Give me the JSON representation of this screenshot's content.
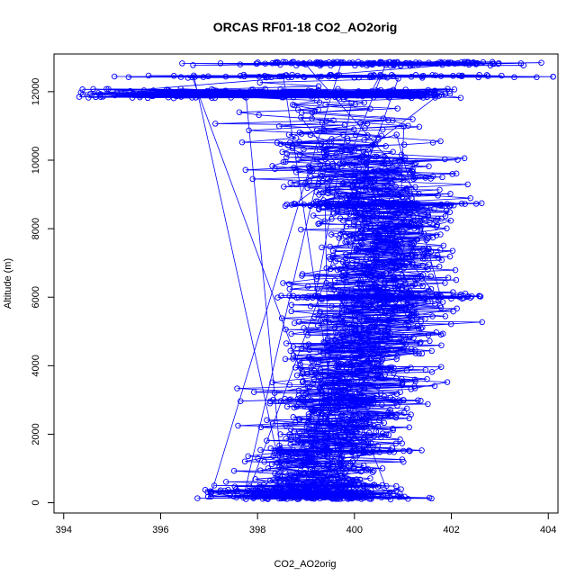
{
  "chart_data": {
    "type": "scatter",
    "title": "ORCAS RF01-18 CO2_AO2orig",
    "xlabel": "CO2_AO2orig",
    "ylabel": "Altitude (m)",
    "xlim": [
      393.8,
      404.2
    ],
    "ylim": [
      -300,
      13100
    ],
    "xticks": [
      "394",
      "396",
      "398",
      "400",
      "402",
      "404"
    ],
    "yticks": [
      "0",
      "2000",
      "4000",
      "6000",
      "8000",
      "10000",
      "12000"
    ],
    "grid": false,
    "legend": "none",
    "marker": "open-circle",
    "connected": true,
    "color": "#0000ff",
    "profile": [
      {
        "alt": 200,
        "center": 399.3,
        "spread": 1.0
      },
      {
        "alt": 1000,
        "center": 399.3,
        "spread": 1.0
      },
      {
        "alt": 1500,
        "center": 399.4,
        "spread": 0.9
      },
      {
        "alt": 2000,
        "center": 399.6,
        "spread": 1.0
      },
      {
        "alt": 3000,
        "center": 399.9,
        "spread": 1.0
      },
      {
        "alt": 4000,
        "center": 400.1,
        "spread": 1.0
      },
      {
        "alt": 5000,
        "center": 400.3,
        "spread": 1.0
      },
      {
        "alt": 6000,
        "center": 400.5,
        "spread": 1.0
      },
      {
        "alt": 7000,
        "center": 400.6,
        "spread": 1.0
      },
      {
        "alt": 8000,
        "center": 400.7,
        "spread": 0.9
      },
      {
        "alt": 9000,
        "center": 400.4,
        "spread": 1.1
      },
      {
        "alt": 10000,
        "center": 400.0,
        "spread": 1.3
      },
      {
        "alt": 11000,
        "center": 399.8,
        "spread": 1.4
      },
      {
        "alt": 12000,
        "center": 399.5,
        "spread": 1.7
      },
      {
        "alt": 12800,
        "center": 400.6,
        "spread": 1.2
      }
    ]
  }
}
